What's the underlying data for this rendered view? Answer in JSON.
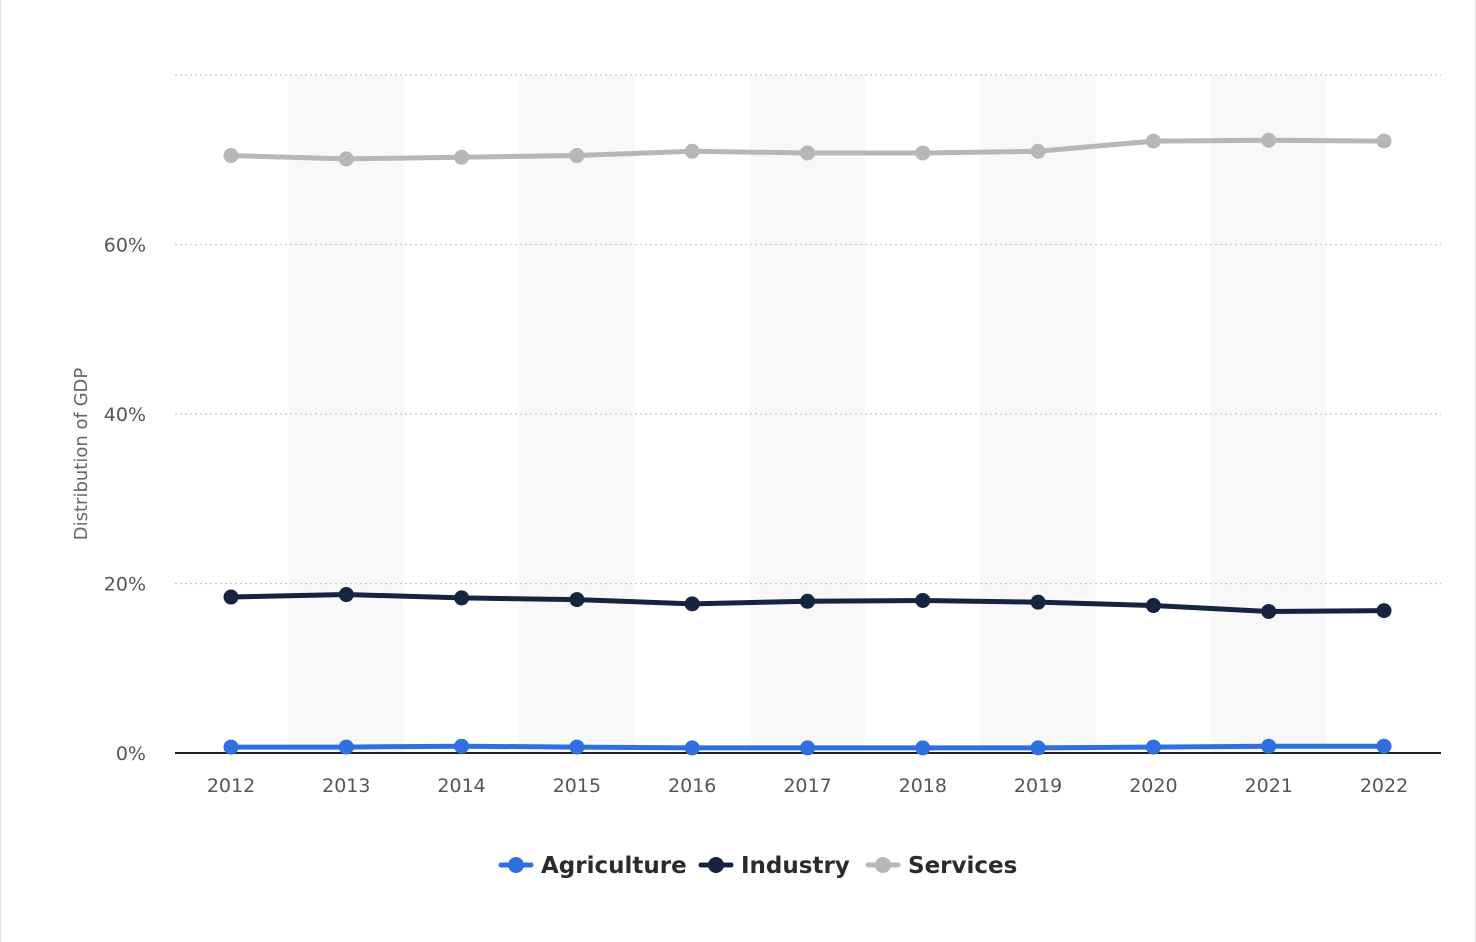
{
  "chart_data": {
    "type": "line",
    "title": "",
    "xlabel": "",
    "ylabel": "Distribution of GDP",
    "categories": [
      "2012",
      "2013",
      "2014",
      "2015",
      "2016",
      "2017",
      "2018",
      "2019",
      "2020",
      "2021",
      "2022"
    ],
    "ylim": [
      0,
      80
    ],
    "yticks": [
      0,
      20,
      40,
      60
    ],
    "ytick_labels": [
      "0%",
      "20%",
      "40%",
      "60%"
    ],
    "grid": true,
    "legend_position": "bottom",
    "series": [
      {
        "name": "Agriculture",
        "color": "#2f6fe0",
        "values": [
          0.7,
          0.7,
          0.8,
          0.7,
          0.6,
          0.6,
          0.6,
          0.6,
          0.7,
          0.8,
          0.8
        ]
      },
      {
        "name": "Industry",
        "color": "#15243f",
        "values": [
          18.4,
          18.7,
          18.3,
          18.1,
          17.6,
          17.9,
          18.0,
          17.8,
          17.4,
          16.7,
          16.8
        ]
      },
      {
        "name": "Services",
        "color": "#b7b7b7",
        "values": [
          70.5,
          70.1,
          70.3,
          70.5,
          71.0,
          70.8,
          70.8,
          71.0,
          72.2,
          72.3,
          72.2
        ]
      }
    ]
  },
  "colors": {
    "band": "#f8f8f8",
    "grid": "#c8c8c8",
    "axis": "#222222"
  }
}
